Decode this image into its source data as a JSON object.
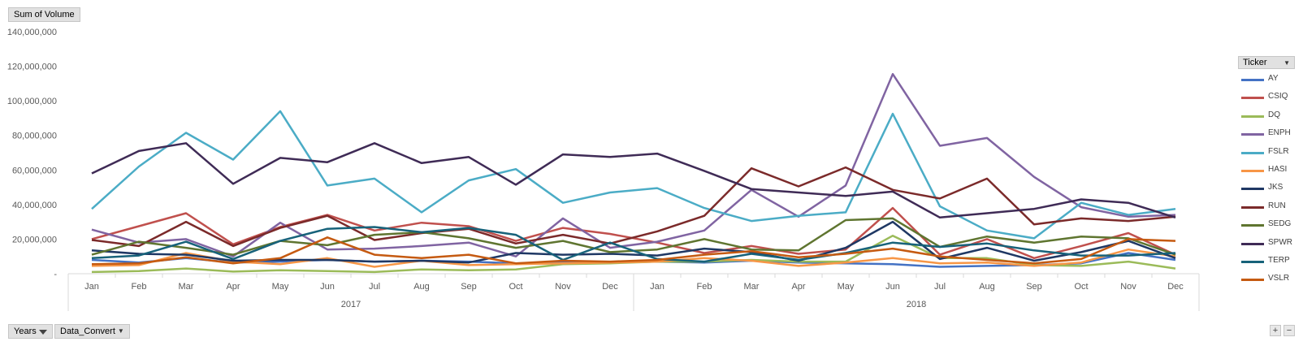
{
  "pivot": {
    "value_field": "Sum of Volume",
    "legend_title": "Ticker",
    "filter_buttons": [
      {
        "label": "Years"
      },
      {
        "label": "Data_Convert"
      }
    ],
    "zoom_in": "+",
    "zoom_out": "−"
  },
  "chart_data": {
    "type": "line",
    "title": "",
    "xlabel": "",
    "ylabel": "",
    "ylim": [
      0,
      140000000
    ],
    "ytick_labels": [
      "-",
      "20,000,000",
      "40,000,000",
      "60,000,000",
      "80,000,000",
      "100,000,000",
      "120,000,000",
      "140,000,000"
    ],
    "categories": [
      "Jan",
      "Feb",
      "Mar",
      "Apr",
      "May",
      "Jun",
      "Jul",
      "Aug",
      "Sep",
      "Oct",
      "Nov",
      "Dec",
      "Jan",
      "Feb",
      "Mar",
      "Apr",
      "May",
      "Jun",
      "Jul",
      "Aug",
      "Sep",
      "Oct",
      "Nov",
      "Dec"
    ],
    "groups": [
      {
        "label": "2017",
        "count": 12
      },
      {
        "label": "2018",
        "count": 12
      }
    ],
    "legend_position": "right",
    "grid": false,
    "series": [
      {
        "name": "AY",
        "color": "#4472c4",
        "values": [
          8000000,
          6500000,
          9000000,
          6500000,
          7000000,
          8000000,
          7000000,
          7500000,
          7000000,
          6000000,
          6500000,
          6500000,
          7000000,
          6500000,
          7500000,
          6500000,
          6000000,
          5500000,
          4000000,
          4500000,
          5000000,
          6000000,
          12000000,
          8000000
        ]
      },
      {
        "name": "CSIQ",
        "color": "#c0504d",
        "values": [
          20000000,
          27500000,
          35000000,
          17000000,
          27000000,
          34000000,
          25000000,
          29500000,
          27500000,
          19000000,
          26500000,
          23000000,
          18000000,
          12000000,
          16000000,
          11500000,
          14000000,
          38000000,
          11000000,
          20000000,
          9000000,
          16000000,
          23500000,
          11000000
        ]
      },
      {
        "name": "DQ",
        "color": "#9bbb59",
        "values": [
          1000000,
          1500000,
          3000000,
          1200000,
          2000000,
          1500000,
          1000000,
          2500000,
          2000000,
          2500000,
          5500000,
          6000000,
          7000000,
          7000000,
          8000000,
          7000000,
          7000000,
          22000000,
          9000000,
          9000000,
          5000000,
          4500000,
          7000000,
          3000000
        ]
      },
      {
        "name": "ENPH",
        "color": "#8064a2",
        "values": [
          25500000,
          18000000,
          20000000,
          10000000,
          29500000,
          14000000,
          14500000,
          16000000,
          18000000,
          10000000,
          32000000,
          15000000,
          18500000,
          25000000,
          48500000,
          33000000,
          51000000,
          115500000,
          74000000,
          78500000,
          56000000,
          38500000,
          33000000,
          34000000
        ]
      },
      {
        "name": "FSLR",
        "color": "#4bacc6",
        "values": [
          37500000,
          62000000,
          81500000,
          66000000,
          94000000,
          51000000,
          55000000,
          35500000,
          54000000,
          60500000,
          41000000,
          47000000,
          49500000,
          38000000,
          30500000,
          33500000,
          35500000,
          92500000,
          39000000,
          25000000,
          20500000,
          41000000,
          34000000,
          37500000
        ]
      },
      {
        "name": "HASI",
        "color": "#f79646",
        "values": [
          4500000,
          5000000,
          12000000,
          7000000,
          5500000,
          9000000,
          4000000,
          7500000,
          5000000,
          5500000,
          6000000,
          6500000,
          7000000,
          9000000,
          7500000,
          4500000,
          6500000,
          9000000,
          6000000,
          6500000,
          4500000,
          6500000,
          14000000,
          10000000
        ]
      },
      {
        "name": "JKS",
        "color": "#1f3864",
        "values": [
          13500000,
          11500000,
          11000000,
          7500000,
          8000000,
          8000000,
          7000000,
          7500000,
          6500000,
          12000000,
          11000000,
          11500000,
          10500000,
          14500000,
          12500000,
          7500000,
          15000000,
          30000000,
          8500000,
          15000000,
          7500000,
          12500000,
          19000000,
          9000000
        ]
      },
      {
        "name": "RUN",
        "color": "#7b2a2a",
        "values": [
          19500000,
          16000000,
          30000000,
          16000000,
          26500000,
          33500000,
          19500000,
          23500000,
          26000000,
          17500000,
          22500000,
          17500000,
          24500000,
          33500000,
          61000000,
          50500000,
          61500000,
          48500000,
          43500000,
          55000000,
          28500000,
          32000000,
          30500000,
          33000000
        ]
      },
      {
        "name": "SEDG",
        "color": "#5f7530",
        "values": [
          11000000,
          18500000,
          15000000,
          11000000,
          19000000,
          16500000,
          22500000,
          24000000,
          20500000,
          15000000,
          19000000,
          12500000,
          14000000,
          20000000,
          14000000,
          13500000,
          31000000,
          32000000,
          15500000,
          21500000,
          18000000,
          21500000,
          20500000,
          11000000
        ]
      },
      {
        "name": "SPWR",
        "color": "#3f2b56",
        "values": [
          58000000,
          71000000,
          75500000,
          52000000,
          67000000,
          64500000,
          75500000,
          64000000,
          67500000,
          51500000,
          69000000,
          67500000,
          69500000,
          59500000,
          49000000,
          47000000,
          45000000,
          47500000,
          32500000,
          35000000,
          37500000,
          43000000,
          41000000,
          32500000
        ]
      },
      {
        "name": "TERP",
        "color": "#17627a",
        "values": [
          9000000,
          10500000,
          18500000,
          8500000,
          19000000,
          26000000,
          27000000,
          24000000,
          26500000,
          22500000,
          8000000,
          18000000,
          8500000,
          7000000,
          11500000,
          8000000,
          12000000,
          18000000,
          15500000,
          17500000,
          13500000,
          10500000,
          10500000,
          12000000
        ]
      },
      {
        "name": "VSLR",
        "color": "#c55a11",
        "values": [
          5500000,
          6000000,
          9500000,
          6000000,
          9000000,
          21000000,
          11000000,
          9000000,
          11000000,
          6000000,
          7500000,
          7000000,
          8000000,
          11000000,
          13000000,
          9500000,
          11500000,
          14500000,
          10000000,
          8000000,
          6000000,
          8500000,
          20000000,
          19000000
        ]
      }
    ]
  }
}
